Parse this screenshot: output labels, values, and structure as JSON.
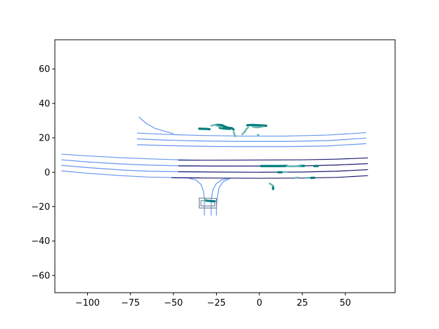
{
  "chart_data": {
    "type": "line",
    "title": "",
    "xlabel": "",
    "ylabel": "",
    "xlim": [
      -119,
      79
    ],
    "ylim": [
      -70,
      77
    ],
    "xticks": [
      -100,
      -75,
      -50,
      -25,
      0,
      25,
      50
    ],
    "yticks": [
      -60,
      -40,
      -20,
      0,
      20,
      40,
      60
    ],
    "grid": false,
    "colors": {
      "lane_light": "#6495ED",
      "lane_dark": "#191970",
      "crosswalk": "#778899",
      "track_dark": "#007C7C",
      "track_light": "#66B2B2"
    },
    "series": [
      {
        "group": "lane_light",
        "points": [
          [
            -115,
            10.5
          ],
          [
            -100,
            9.5
          ],
          [
            -80,
            8.4
          ],
          [
            -65,
            7.8
          ],
          [
            -50,
            7.3
          ],
          [
            -35,
            7.0
          ]
        ]
      },
      {
        "group": "lane_light",
        "points": [
          [
            -115,
            7.2
          ],
          [
            -100,
            6.0
          ],
          [
            -80,
            4.8
          ],
          [
            -65,
            4.2
          ],
          [
            -50,
            3.8
          ],
          [
            -35,
            3.7
          ]
        ]
      },
      {
        "group": "lane_light",
        "points": [
          [
            -115,
            4.0
          ],
          [
            -100,
            2.7
          ],
          [
            -80,
            1.3
          ],
          [
            -65,
            0.6
          ],
          [
            -50,
            0.3
          ],
          [
            -35,
            0.2
          ]
        ]
      },
      {
        "group": "lane_light",
        "points": [
          [
            -115,
            0.8
          ],
          [
            -100,
            -0.6
          ],
          [
            -80,
            -2.0
          ],
          [
            -65,
            -2.8
          ],
          [
            -50,
            -3.1
          ],
          [
            -35,
            -3.2
          ]
        ]
      },
      {
        "group": "lane_light",
        "points": [
          [
            -71,
            22.8
          ],
          [
            -55,
            22.0
          ],
          [
            -35,
            21.4
          ],
          [
            -10,
            21.0
          ],
          [
            15,
            21.0
          ],
          [
            40,
            21.6
          ],
          [
            62,
            23.0
          ]
        ]
      },
      {
        "group": "lane_light",
        "points": [
          [
            -71,
            19.4
          ],
          [
            -55,
            18.7
          ],
          [
            -35,
            18.2
          ],
          [
            -10,
            17.9
          ],
          [
            15,
            17.9
          ],
          [
            40,
            18.4
          ],
          [
            62,
            19.8
          ]
        ]
      },
      {
        "group": "lane_light",
        "points": [
          [
            -71,
            16.0
          ],
          [
            -55,
            15.5
          ],
          [
            -35,
            15.1
          ],
          [
            -10,
            14.9
          ],
          [
            15,
            14.9
          ],
          [
            40,
            15.3
          ],
          [
            62,
            16.6
          ]
        ]
      },
      {
        "group": "lane_light",
        "points": [
          [
            -70,
            32.0
          ],
          [
            -66,
            28.5
          ],
          [
            -61,
            25.6
          ],
          [
            -55,
            23.8
          ],
          [
            -50,
            22.4
          ]
        ]
      },
      {
        "group": "lane_light",
        "points": [
          [
            -42,
            -3.2
          ],
          [
            -37,
            -4.5
          ],
          [
            -34,
            -7.0
          ],
          [
            -32.5,
            -11.0
          ],
          [
            -32,
            -16.0
          ],
          [
            -32,
            -25.0
          ]
        ]
      },
      {
        "group": "lane_light",
        "points": [
          [
            -18,
            -3.5
          ],
          [
            -22,
            -4.5
          ],
          [
            -25,
            -6.5
          ],
          [
            -27,
            -10.0
          ],
          [
            -28,
            -16.0
          ],
          [
            -28,
            -25.0
          ]
        ]
      },
      {
        "group": "lane_light",
        "points": [
          [
            -17,
            -3.6
          ],
          [
            -21,
            -5.5
          ],
          [
            -23.5,
            -9.0
          ],
          [
            -24.5,
            -15.0
          ],
          [
            -25,
            -20.0
          ],
          [
            -25,
            -25.0
          ]
        ]
      },
      {
        "group": "lane_dark",
        "points": [
          [
            -47,
            7.0
          ],
          [
            -25,
            7.0
          ],
          [
            0,
            7.1
          ],
          [
            25,
            7.2
          ],
          [
            45,
            7.6
          ],
          [
            63,
            8.3
          ]
        ]
      },
      {
        "group": "lane_dark",
        "points": [
          [
            -47,
            3.7
          ],
          [
            -25,
            3.6
          ],
          [
            0,
            3.6
          ],
          [
            25,
            3.7
          ],
          [
            45,
            4.2
          ],
          [
            63,
            5.0
          ]
        ]
      },
      {
        "group": "lane_dark",
        "points": [
          [
            -47,
            0.3
          ],
          [
            -25,
            0.1
          ],
          [
            0,
            0.0
          ],
          [
            25,
            0.1
          ],
          [
            45,
            0.6
          ],
          [
            63,
            1.5
          ]
        ]
      },
      {
        "group": "lane_dark",
        "points": [
          [
            -51,
            -3.2
          ],
          [
            -25,
            -3.4
          ],
          [
            0,
            -3.5
          ],
          [
            25,
            -3.4
          ],
          [
            45,
            -3.0
          ],
          [
            63,
            -2.0
          ]
        ]
      },
      {
        "group": "crosswalk",
        "points": [
          [
            -35,
            -15.0
          ],
          [
            -25,
            -15.2
          ],
          [
            -25,
            -20.8
          ],
          [
            -35,
            -20.8
          ],
          [
            -35,
            -15.0
          ]
        ]
      },
      {
        "group": "crosswalk",
        "points": [
          [
            -34,
            -16.5
          ],
          [
            -26,
            -16.5
          ],
          [
            -26,
            -19.6
          ],
          [
            -34,
            -19.6
          ],
          [
            -34,
            -16.5
          ]
        ]
      },
      {
        "group": "track_dark",
        "points": [
          [
            -35,
            25.3
          ],
          [
            -33,
            25.2
          ],
          [
            -31,
            25.2
          ],
          [
            -29,
            25.0
          ]
        ]
      },
      {
        "group": "track_dark",
        "points": [
          [
            -25,
            27.5
          ],
          [
            -22,
            27.4
          ],
          [
            -20,
            26.5
          ],
          [
            -18,
            25.8
          ],
          [
            -16,
            25.6
          ],
          [
            -15,
            24.8
          ]
        ]
      },
      {
        "group": "track_dark",
        "points": [
          [
            -23,
            25.8
          ],
          [
            -21,
            25.5
          ],
          [
            -19,
            25.3
          ],
          [
            -17,
            25.2
          ]
        ]
      },
      {
        "group": "track_dark",
        "points": [
          [
            -7,
            27.3
          ],
          [
            -4,
            27.5
          ],
          [
            -1,
            27.3
          ],
          [
            2,
            27.2
          ],
          [
            4,
            27.0
          ]
        ]
      },
      {
        "group": "track_dark",
        "points": [
          [
            1,
            3.6
          ],
          [
            5,
            3.6
          ],
          [
            9,
            3.6
          ],
          [
            13,
            3.6
          ],
          [
            16,
            3.7
          ]
        ]
      },
      {
        "group": "track_dark",
        "points": [
          [
            23,
            3.6
          ],
          [
            26,
            3.7
          ]
        ]
      },
      {
        "group": "track_dark",
        "points": [
          [
            32,
            3.6
          ],
          [
            34,
            3.6
          ]
        ]
      },
      {
        "group": "track_dark",
        "points": [
          [
            11,
            0.0
          ],
          [
            13,
            0.0
          ]
        ]
      },
      {
        "group": "track_dark",
        "points": [
          [
            30,
            -3.3
          ],
          [
            32,
            -3.2
          ]
        ]
      },
      {
        "group": "track_dark",
        "points": [
          [
            -31,
            -16.5
          ],
          [
            -28,
            -16.8
          ],
          [
            -26,
            -16.9
          ]
        ]
      },
      {
        "group": "track_dark",
        "points": [
          [
            8,
            -8.6
          ],
          [
            8,
            -9.8
          ]
        ]
      },
      {
        "group": "track_light",
        "points": [
          [
            -28,
            27.0
          ],
          [
            -26,
            27.6
          ],
          [
            -24,
            26.8
          ],
          [
            -22,
            26.2
          ]
        ]
      },
      {
        "group": "track_light",
        "points": [
          [
            -15,
            23.5
          ],
          [
            -14.5,
            22.0
          ],
          [
            -14,
            20.8
          ]
        ]
      },
      {
        "group": "track_light",
        "points": [
          [
            -10,
            22.0
          ],
          [
            -8.5,
            23.5
          ],
          [
            -7.5,
            25.2
          ],
          [
            -6.5,
            26.0
          ]
        ]
      },
      {
        "group": "track_light",
        "points": [
          [
            -4,
            26.5
          ],
          [
            -2,
            26.0
          ],
          [
            0,
            26.2
          ],
          [
            2,
            26.5
          ]
        ]
      },
      {
        "group": "track_light",
        "points": [
          [
            -1,
            21.8
          ],
          [
            -0.5,
            21.6
          ]
        ]
      },
      {
        "group": "track_light",
        "points": [
          [
            16,
            3.5
          ],
          [
            19,
            3.4
          ],
          [
            22,
            3.5
          ],
          [
            24,
            3.5
          ]
        ]
      },
      {
        "group": "track_light",
        "points": [
          [
            14,
            0.2
          ],
          [
            16,
            0.1
          ]
        ]
      },
      {
        "group": "track_light",
        "points": [
          [
            6,
            -6.5
          ],
          [
            7,
            -7.2
          ],
          [
            8,
            -7.8
          ]
        ]
      },
      {
        "group": "track_light",
        "points": [
          [
            21,
            -3.2
          ],
          [
            23,
            -3.1
          ]
        ]
      },
      {
        "group": "track_light",
        "points": [
          [
            27,
            -3.3
          ],
          [
            29,
            -3.2
          ]
        ]
      },
      {
        "group": "track_light",
        "points": [
          [
            -32,
            -15.2
          ],
          [
            -31,
            -16.0
          ]
        ]
      }
    ]
  }
}
